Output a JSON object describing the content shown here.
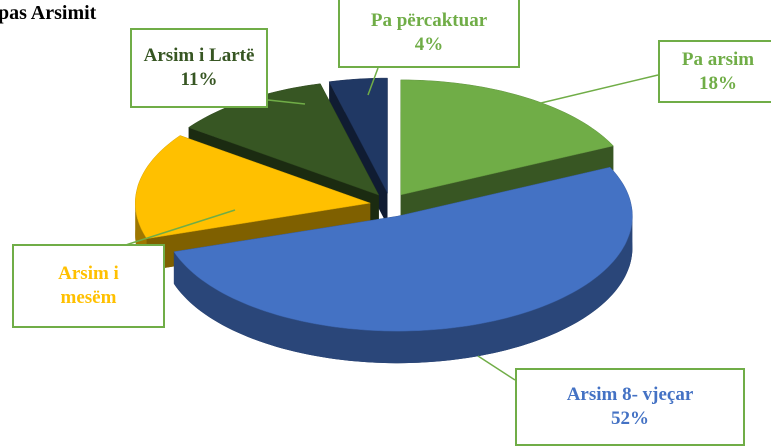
{
  "chart_data": {
    "type": "pie3d",
    "title": "pas Arsimit",
    "categories": [
      "Pa arsim",
      "Arsim 8- vjeçar",
      "Arsim i mesëm",
      "Arsim i Lartë",
      "Pa përcaktuar"
    ],
    "values": [
      18,
      52,
      15,
      11,
      4
    ],
    "value_labels": [
      "18%",
      "52%",
      null,
      "11%",
      "4%"
    ],
    "colors": [
      "#70ad47",
      "#4472c4",
      "#ffc000",
      "#375623",
      "#203864"
    ],
    "label_colors": [
      "#70ad47",
      "#4472c4",
      "#ffc000",
      "#375623",
      "#70ad47"
    ]
  }
}
